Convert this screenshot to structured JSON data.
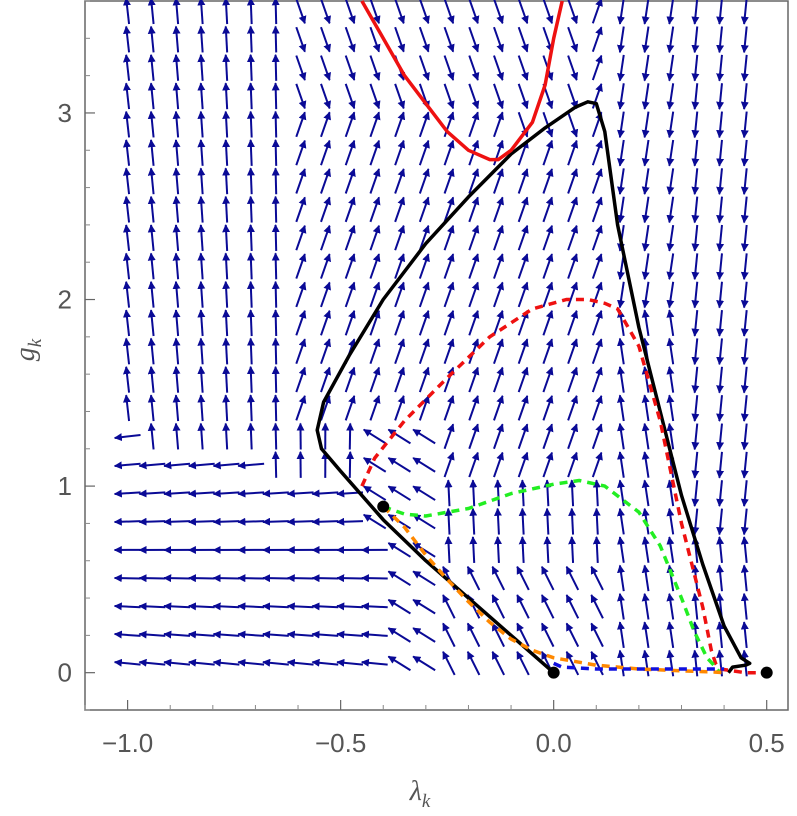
{
  "chart_data": {
    "type": "vector-field",
    "title": "",
    "xlabel": "λ",
    "xlabel_sub": "k",
    "ylabel": "g",
    "ylabel_sub": "k",
    "xlim": [
      -1.1,
      0.55
    ],
    "ylim": [
      -0.2,
      3.6
    ],
    "xticks": [
      -1.0,
      -0.5,
      0.0,
      0.5
    ],
    "xtick_labels": [
      "−1.0",
      "−0.5",
      "0.0",
      "0.5"
    ],
    "yticks": [
      0,
      1,
      2,
      3
    ],
    "ytick_labels": [
      "0",
      "1",
      "2",
      "3"
    ],
    "grid": false,
    "legend": "none",
    "colors": {
      "arrows": "#0a0a96",
      "frame": "#666666",
      "black_curve": "#000000",
      "red_curve": "#ee1111",
      "red_dashed": "#ee1111",
      "green_dashed": "#22ee22",
      "orange_dashed": "#ff8800",
      "blue_dashed": "#1010dd"
    },
    "fixed_points": [
      {
        "x": 0.0,
        "y": 0.0
      },
      {
        "x": 0.5,
        "y": 0.0
      },
      {
        "x": -0.4,
        "y": 0.89
      }
    ],
    "series": [
      {
        "style": "solid",
        "color": "black",
        "x": [
          0.0,
          -0.1,
          -0.2,
          -0.3,
          -0.4,
          -0.5,
          -0.545,
          -0.555,
          -0.54,
          -0.48,
          -0.4,
          -0.3,
          -0.2,
          -0.1,
          -0.02,
          0.05,
          0.08,
          0.1,
          0.12,
          0.15,
          0.2,
          0.25,
          0.3,
          0.35,
          0.4,
          0.44,
          0.46,
          0.45,
          0.42,
          0.41
        ],
        "y": [
          0.0,
          0.2,
          0.4,
          0.6,
          0.82,
          1.08,
          1.2,
          1.3,
          1.45,
          1.7,
          2.0,
          2.3,
          2.55,
          2.78,
          2.92,
          3.03,
          3.06,
          3.05,
          2.9,
          2.4,
          1.85,
          1.4,
          0.95,
          0.58,
          0.25,
          0.08,
          0.05,
          0.04,
          0.03,
          0.0
        ]
      },
      {
        "style": "solid",
        "color": "red",
        "x": [
          -0.45,
          -0.4,
          -0.35,
          -0.3,
          -0.25,
          -0.2,
          -0.15,
          -0.13,
          -0.1,
          -0.05,
          -0.02,
          0.0,
          0.02
        ],
        "y": [
          3.6,
          3.4,
          3.2,
          3.05,
          2.9,
          2.8,
          2.75,
          2.75,
          2.8,
          2.95,
          3.15,
          3.4,
          3.6
        ]
      },
      {
        "style": "dashed",
        "color": "red",
        "x": [
          -0.45,
          -0.42,
          -0.35,
          -0.25,
          -0.15,
          -0.05,
          0.03,
          0.08,
          0.12,
          0.15,
          0.2,
          0.25,
          0.3,
          0.35,
          0.37,
          0.38,
          0.39,
          0.42,
          0.45,
          0.5
        ],
        "y": [
          1.0,
          1.15,
          1.35,
          1.58,
          1.8,
          1.95,
          2.0,
          2.0,
          1.98,
          1.95,
          1.75,
          1.35,
          0.8,
          0.35,
          0.12,
          0.05,
          0.02,
          0.01,
          0.0,
          0.0
        ]
      },
      {
        "style": "dashed",
        "color": "green",
        "x": [
          -0.4,
          -0.35,
          -0.3,
          -0.2,
          -0.1,
          0.0,
          0.06,
          0.12,
          0.2,
          0.25,
          0.3,
          0.33,
          0.36,
          0.38,
          0.39
        ],
        "y": [
          0.89,
          0.85,
          0.84,
          0.88,
          0.96,
          1.01,
          1.03,
          1.0,
          0.86,
          0.68,
          0.4,
          0.22,
          0.08,
          0.03,
          0.0
        ]
      },
      {
        "style": "dashed",
        "color": "orange",
        "x": [
          -0.4,
          -0.35,
          -0.3,
          -0.25,
          -0.2,
          -0.15,
          -0.1,
          -0.05,
          0.0,
          0.1,
          0.2,
          0.3,
          0.36,
          0.38,
          0.4
        ],
        "y": [
          0.89,
          0.78,
          0.63,
          0.5,
          0.38,
          0.27,
          0.18,
          0.12,
          0.08,
          0.04,
          0.02,
          0.01,
          0.005,
          0.003,
          0.0
        ]
      },
      {
        "style": "dashed",
        "color": "blue",
        "x": [
          0.0,
          0.02,
          0.1,
          0.2,
          0.3,
          0.38,
          0.4
        ],
        "y": [
          0.05,
          0.03,
          0.02,
          0.02,
          0.02,
          0.02,
          0.02
        ]
      }
    ]
  }
}
